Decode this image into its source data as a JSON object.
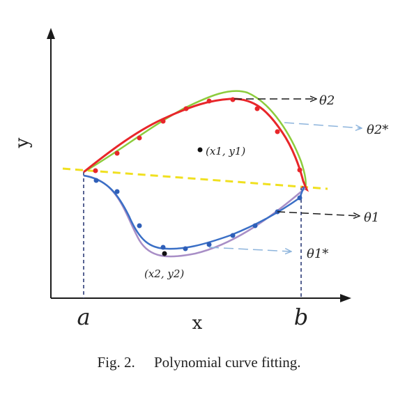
{
  "figure": {
    "axis_x_label": "x",
    "axis_y_label": "y",
    "label_a": "a",
    "label_b": "b",
    "point_1": "(x1, y1)",
    "point_2": "(x2, y2)",
    "theta_2": "θ2",
    "theta_2_star": "θ2*",
    "theta_1": "θ1",
    "theta_1_star": "θ1*"
  },
  "caption": {
    "label": "Fig. 2.",
    "text": "Polynomial curve fitting."
  },
  "colors": {
    "axis": "#1a1a1a",
    "red_curve": "#e8262a",
    "green_curve": "#8ccc3c",
    "blue_curve": "#3a6fc6",
    "purple_curve": "#a88ec6",
    "yellow_line": "#f0e020",
    "guide": "#1f2e6e",
    "light_arrow": "#8db4dc"
  }
}
